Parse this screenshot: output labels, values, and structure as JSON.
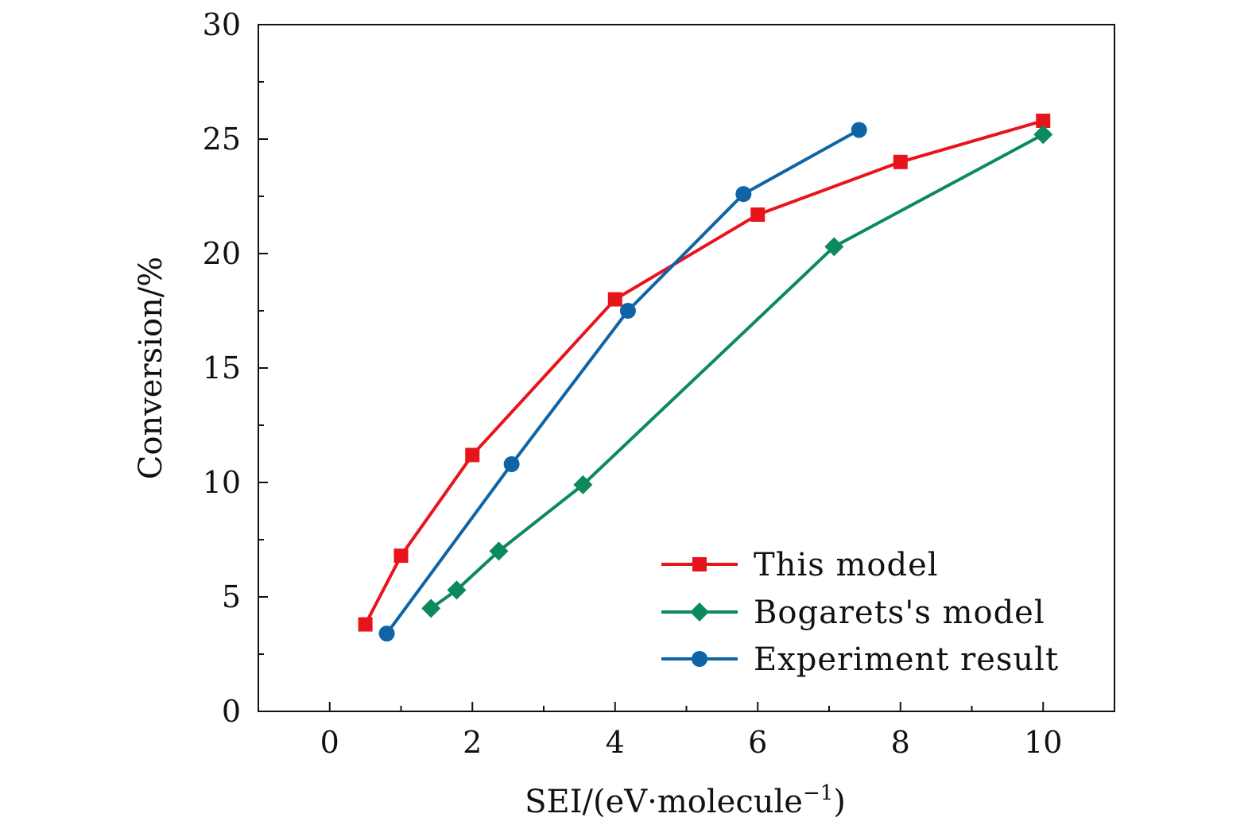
{
  "chart_data": {
    "type": "line",
    "title": "",
    "xlabel": "SEI/(eV·molecule",
    "xlabel_superscript": "−1",
    "xlabel_close": ")",
    "ylabel": "Conversion/%",
    "xlim": [
      -1,
      11
    ],
    "ylim": [
      0,
      30
    ],
    "x_ticks": [
      0,
      2,
      4,
      6,
      8,
      10
    ],
    "x_tick_labels": [
      "0",
      "2",
      "4",
      "6",
      "8",
      "10"
    ],
    "y_ticks": [
      0,
      5,
      10,
      15,
      20,
      25,
      30
    ],
    "y_tick_labels": [
      "0",
      "5",
      "10",
      "15",
      "20",
      "25",
      "30"
    ],
    "grid": false,
    "legend_position": "bottom-right",
    "series": [
      {
        "name": "This model",
        "color": "#e8141b",
        "marker": "square",
        "x": [
          0.5,
          1.0,
          2.0,
          4.0,
          6.0,
          8.0,
          10.0
        ],
        "y": [
          3.8,
          6.8,
          11.2,
          18.0,
          21.7,
          24.0,
          25.8
        ]
      },
      {
        "name": "Bogarets's model",
        "color": "#0c8a5c",
        "marker": "diamond",
        "x": [
          1.42,
          1.78,
          2.37,
          3.55,
          7.07,
          10.0
        ],
        "y": [
          4.5,
          5.3,
          7.0,
          9.9,
          20.3,
          25.2
        ]
      },
      {
        "name": "Experiment result",
        "color": "#0f64a6",
        "marker": "circle",
        "x": [
          0.8,
          2.55,
          4.18,
          5.8,
          7.42
        ],
        "y": [
          3.4,
          10.8,
          17.5,
          22.6,
          25.4
        ]
      }
    ]
  }
}
